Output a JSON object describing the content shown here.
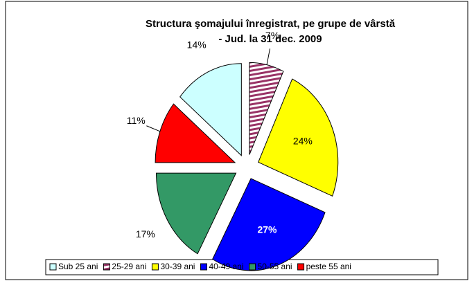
{
  "chart_data": {
    "type": "pie",
    "title": [
      "Structura şomajului înregistrat, pe grupe de vârstă",
      "- Jud.  la 31 dec. 2009"
    ],
    "categories": [
      "Sub 25 ani",
      "25-29 ani",
      "30-39 ani",
      "40-49 ani",
      "50-55 ani",
      "peste 55 ani"
    ],
    "values": [
      14,
      7,
      24,
      27,
      17,
      11
    ],
    "value_labels": [
      "14%",
      "7%",
      "24%",
      "27%",
      "17%",
      "11%"
    ],
    "colors": [
      "#ccffff",
      "#993366",
      "#ffff00",
      "#0000ff",
      "#339966",
      "#ff0000"
    ],
    "hatched": [
      false,
      true,
      false,
      false,
      false,
      false
    ],
    "legend": "bottom"
  }
}
